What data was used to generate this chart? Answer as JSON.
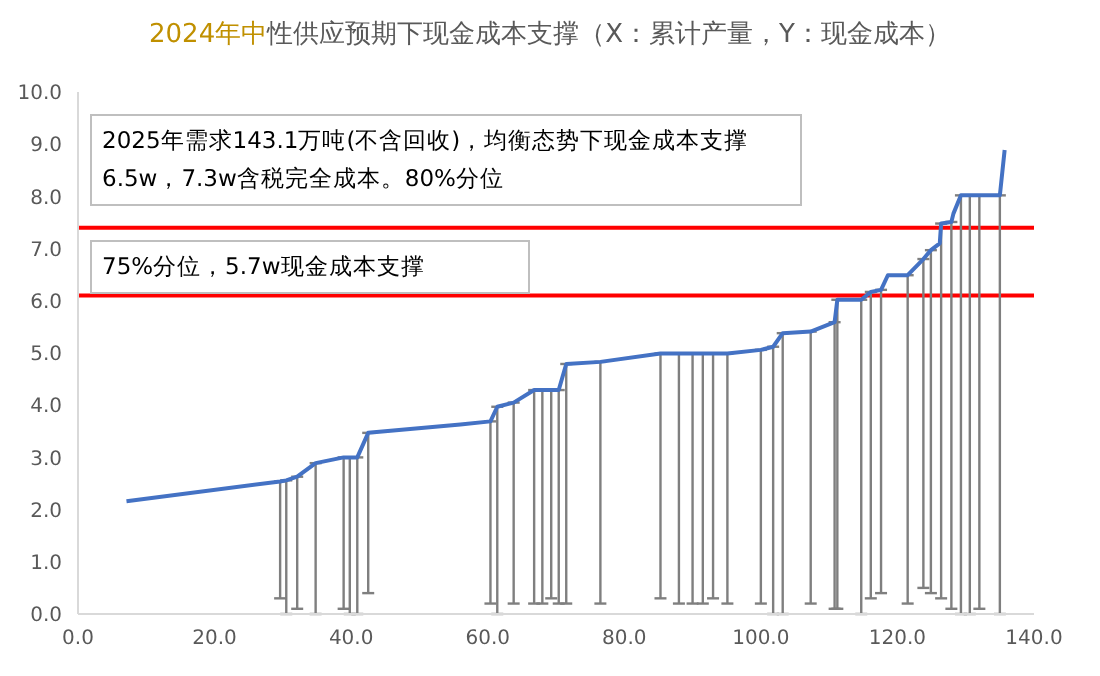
{
  "chart_data": {
    "type": "line",
    "title": "2024年中性供应预期下现金成本支撑（X：累计产量，Y：现金成本）",
    "annotations": [
      "2025年需求143.1万吨(不含回收)，均衡态势下现金成本支撑6.5w，7.3w含税完全成本。80%分位",
      "75%分位，5.7w现金成本支撑"
    ],
    "series": [
      {
        "color": "#4472c4",
        "x": [
          7.1,
          29.6,
          30.5,
          32.1,
          34.8,
          38.9,
          39.8,
          40.9,
          42.5,
          56,
          60.4,
          61.4,
          63.8,
          66.8,
          68,
          69.3,
          70.4,
          71.5,
          76.5,
          85.3,
          88,
          90,
          91.5,
          93,
          95.1,
          100,
          101.8,
          103.2,
          107.3,
          110.8,
          111.2,
          114.7,
          116.1,
          117.6,
          118.6,
          121.5,
          123.8,
          124.9,
          126.2,
          126.4,
          127.9,
          128.2,
          129.3,
          130.6,
          132,
          135,
          135.7
        ],
        "values": [
          2.16,
          2.54,
          2.56,
          2.63,
          2.89,
          3.0,
          3.0,
          3.0,
          3.47,
          3.63,
          3.69,
          3.97,
          4.05,
          4.29,
          4.29,
          4.29,
          4.29,
          4.79,
          4.83,
          4.99,
          4.99,
          4.99,
          4.99,
          4.99,
          4.99,
          5.06,
          5.12,
          5.38,
          5.41,
          5.59,
          6.02,
          6.02,
          6.17,
          6.21,
          6.49,
          6.49,
          6.8,
          6.97,
          7.1,
          7.48,
          7.51,
          7.67,
          8.02,
          8.02,
          8.02,
          8.02,
          8.89
        ],
        "errors": [
          null,
          [
            0.3,
            2.54
          ],
          [
            0,
            2.56
          ],
          [
            0.1,
            2.63
          ],
          [
            0,
            2.89
          ],
          [
            0.1,
            3.0
          ],
          [
            0,
            3.0
          ],
          [
            0,
            3.0
          ],
          [
            0.4,
            3.47
          ],
          null,
          [
            0.2,
            3.69
          ],
          [
            0,
            3.97
          ],
          [
            0.2,
            4.05
          ],
          [
            0.2,
            4.29
          ],
          [
            0.2,
            4.29
          ],
          [
            0.3,
            4.29
          ],
          [
            0.2,
            4.29
          ],
          [
            0.2,
            4.79
          ],
          [
            0.2,
            4.83
          ],
          [
            0.3,
            4.99
          ],
          [
            0.2,
            4.99
          ],
          [
            0.2,
            4.99
          ],
          [
            0.2,
            4.99
          ],
          [
            0.3,
            4.99
          ],
          [
            0.2,
            4.99
          ],
          [
            0.2,
            5.06
          ],
          [
            0,
            5.12
          ],
          [
            0,
            5.38
          ],
          [
            0.2,
            5.41
          ],
          [
            0.1,
            5.59
          ],
          [
            0.1,
            6.02
          ],
          [
            0,
            6.02
          ],
          [
            0.3,
            6.17
          ],
          [
            0.4,
            6.21
          ],
          null,
          [
            0.2,
            6.49
          ],
          [
            0.5,
            6.8
          ],
          [
            0.4,
            6.97
          ],
          null,
          [
            0.3,
            7.48
          ],
          [
            0.1,
            7.51
          ],
          null,
          [
            0,
            8.02
          ],
          [
            0,
            8.02
          ],
          [
            0.1,
            8.02
          ],
          [
            0,
            8.02
          ],
          null
        ]
      }
    ],
    "xlim": [
      0,
      140
    ],
    "xticks": [
      {
        "value": 0,
        "label": "0.0"
      },
      {
        "value": 20,
        "label": "20.0"
      },
      {
        "value": 40,
        "label": "40.0"
      },
      {
        "value": 60,
        "label": "60.0"
      },
      {
        "value": 80,
        "label": "80.0"
      },
      {
        "value": 100,
        "label": "100.0"
      },
      {
        "value": 120,
        "label": "120.0"
      },
      {
        "value": 140,
        "label": "140.0"
      }
    ],
    "ylim": [
      0,
      10
    ],
    "yticks": [
      {
        "value": 0,
        "label": "0.0"
      },
      {
        "value": 1,
        "label": "1.0"
      },
      {
        "value": 2,
        "label": "2.0"
      },
      {
        "value": 3,
        "label": "3.0"
      },
      {
        "value": 4,
        "label": "4.0"
      },
      {
        "value": 5,
        "label": "5.0"
      },
      {
        "value": 6,
        "label": "6.0"
      },
      {
        "value": 7,
        "label": "7.0"
      },
      {
        "value": 8,
        "label": "8.0"
      },
      {
        "value": 9,
        "label": "9.0"
      },
      {
        "value": 10,
        "label": "10.0"
      }
    ],
    "ref_lines": [
      {
        "axis": "y",
        "value": 7.4,
        "color": "#ff0000"
      },
      {
        "axis": "y",
        "value": 6.1,
        "color": "#ff0000"
      }
    ],
    "grid": false,
    "legend": false,
    "marker": "none",
    "line_style": "solid"
  }
}
